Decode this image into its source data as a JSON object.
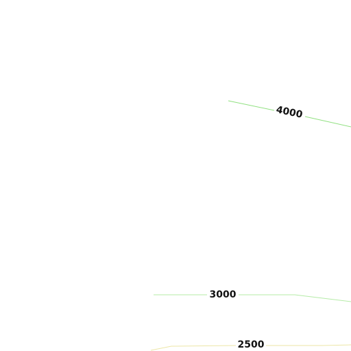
{
  "contours": [
    {
      "label": 4000
    },
    {
      "label": 3000
    },
    {
      "label": 2500
    }
  ]
}
